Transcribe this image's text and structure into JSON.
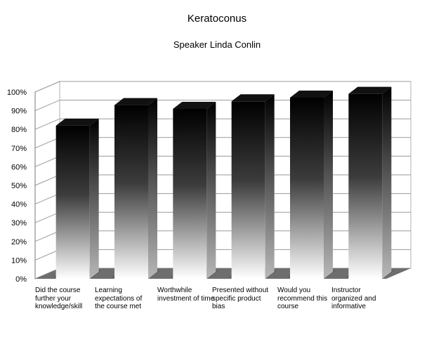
{
  "chart_data": {
    "type": "bar",
    "title": "Keratoconus",
    "subtitle": "Speaker Linda Conlin",
    "categories": [
      "Did the course further your knowledge/skill",
      "Learning expectations of the course met",
      "Worthwhile investment of time",
      "Presented without specific product bias",
      "Would you recommend this course",
      "Instructor organized and informative"
    ],
    "values": [
      82,
      93,
      91,
      95,
      97,
      99
    ],
    "ylim": [
      0,
      100
    ],
    "yticks": [
      "0%",
      "10%",
      "20%",
      "30%",
      "40%",
      "50%",
      "60%",
      "70%",
      "80%",
      "90%",
      "100%"
    ],
    "ylabel": "",
    "xlabel": "",
    "grid": true,
    "style": "3d-column"
  }
}
